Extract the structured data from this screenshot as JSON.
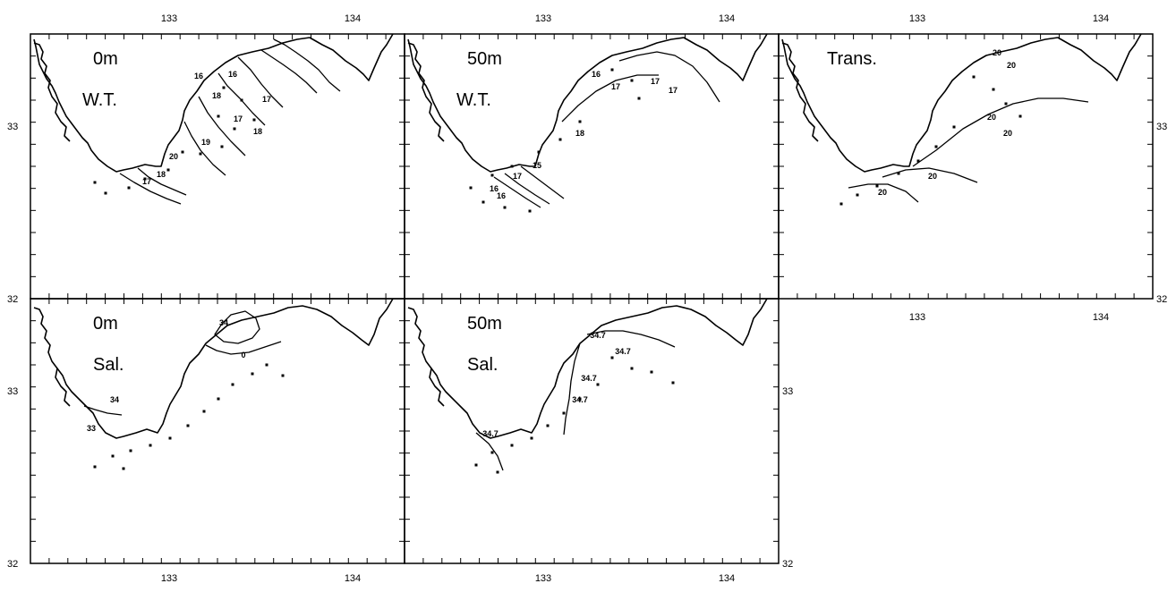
{
  "figure": {
    "top_axis_labels": [
      "133",
      "134",
      "133",
      "134",
      "133",
      "134"
    ],
    "bottom_axis_labels": [
      "133",
      "134",
      "133",
      "134",
      "133",
      "134"
    ],
    "left_axis_labels": [
      "33",
      "32",
      "33",
      "32"
    ],
    "right_axis_labels": [
      "33",
      "32",
      "33",
      "32"
    ]
  },
  "panels": [
    {
      "id": "wt-0m",
      "depth": "0m",
      "variable": "W.T.",
      "contour_labels": [
        "16",
        "16",
        "18",
        "17",
        "17",
        "18",
        "19",
        "20",
        "18",
        "17"
      ]
    },
    {
      "id": "wt-50m",
      "depth": "50m",
      "variable": "W.T.",
      "contour_labels": [
        "16",
        "17",
        "17",
        "17",
        "18",
        "15",
        "17",
        "16",
        "16"
      ]
    },
    {
      "id": "trans",
      "depth": "",
      "variable": "Trans.",
      "contour_labels": [
        "20",
        "20",
        "20",
        "20",
        "20",
        "20"
      ]
    },
    {
      "id": "sal-0m",
      "depth": "0m",
      "variable": "Sal.",
      "contour_labels": [
        "34",
        "0",
        "34",
        "33"
      ]
    },
    {
      "id": "sal-50m",
      "depth": "50m",
      "variable": "Sal.",
      "contour_labels": [
        "34.7",
        "34.7",
        "34.7",
        "34.7",
        "34.7"
      ]
    }
  ]
}
